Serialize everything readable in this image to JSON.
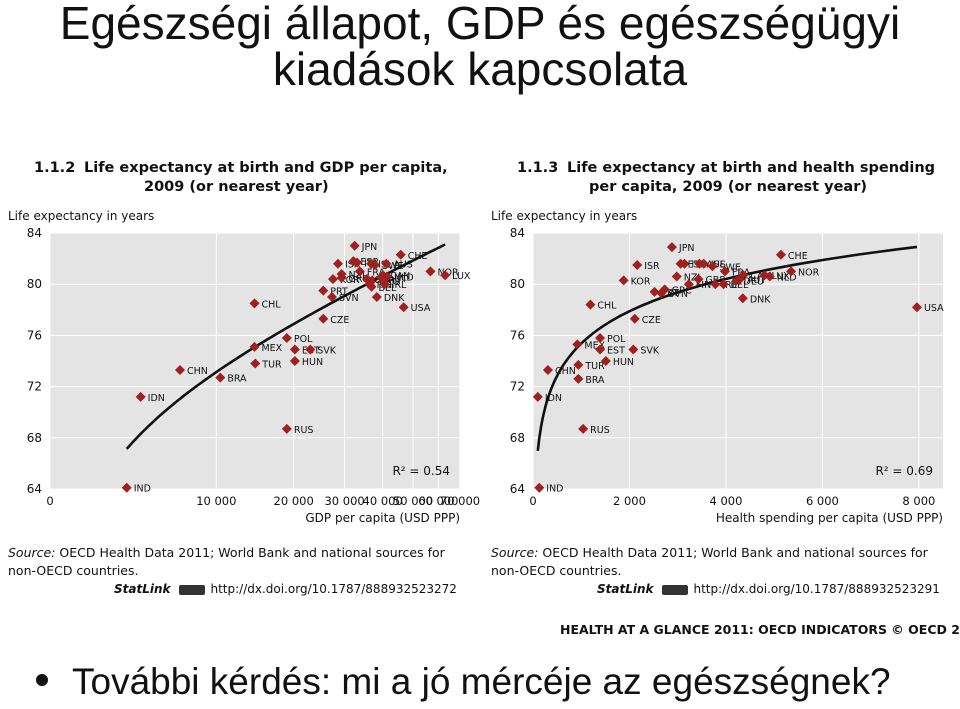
{
  "slide": {
    "title_line1": "Egészségi állapot, GDP és egészségügyi",
    "title_line2": "kiadások kapcsolata",
    "bullet": "További kérdés: mi a jó mércéje az egészségnek?",
    "footer": "HEALTH AT A GLANCE 2011: OECD INDICATORS © OECD 2011"
  },
  "colors": {
    "marker": "#a01f1f",
    "plot_bg": "#e4e4e4",
    "grid": "#ffffff",
    "curve": "#111111"
  },
  "chart_data": [
    {
      "type": "scatter",
      "number": "1.1.2",
      "title_line1": "Life expectancy at birth and GDP per capita,",
      "title_line2": "2009 (or nearest year)",
      "ylabel": "Life expectancy in years",
      "xlabel": "GDP per capita (USD PPP)",
      "xscale": "log",
      "xlim": [
        0,
        70000
      ],
      "ylim": [
        64,
        84
      ],
      "xticks": [
        0,
        10000,
        20000,
        30000,
        40000,
        50000,
        60000,
        70000
      ],
      "xtick_labels": [
        "0",
        "10 000",
        "20 000",
        "30 000",
        "40 000",
        "50 000",
        "60 000",
        "70 000"
      ],
      "yticks": [
        64,
        68,
        72,
        76,
        80,
        84
      ],
      "r2": "R² = 0.54",
      "grid": true,
      "trend": "logarithmic",
      "points": [
        {
          "label": "IND",
          "x": 3300,
          "y": 64.1
        },
        {
          "label": "IDN",
          "x": 4100,
          "y": 71.2
        },
        {
          "label": "CHN",
          "x": 6800,
          "y": 73.3
        },
        {
          "label": "BRA",
          "x": 10400,
          "y": 72.7
        },
        {
          "label": "MEX",
          "x": 14300,
          "y": 75.1
        },
        {
          "label": "TUR",
          "x": 14400,
          "y": 73.8
        },
        {
          "label": "CHL",
          "x": 14300,
          "y": 78.5
        },
        {
          "label": "RUS",
          "x": 18900,
          "y": 68.7
        },
        {
          "label": "POL",
          "x": 18900,
          "y": 75.8
        },
        {
          "label": "EST",
          "x": 20200,
          "y": 74.9
        },
        {
          "label": "HUN",
          "x": 20200,
          "y": 74.0
        },
        {
          "label": "SVK",
          "x": 22900,
          "y": 74.9
        },
        {
          "label": "CZE",
          "x": 25400,
          "y": 77.3
        },
        {
          "label": "PRT",
          "x": 25400,
          "y": 79.5
        },
        {
          "label": "SVN",
          "x": 27200,
          "y": 79.0
        },
        {
          "label": "KOR",
          "x": 27400,
          "y": 80.4
        },
        {
          "label": "NZL",
          "x": 29300,
          "y": 80.8
        },
        {
          "label": "GRC",
          "x": 29300,
          "y": 80.5
        },
        {
          "label": "ISR",
          "x": 28500,
          "y": 81.6
        },
        {
          "label": "ESP",
          "x": 32100,
          "y": 81.8
        },
        {
          "label": "ITA",
          "x": 33000,
          "y": 81.7
        },
        {
          "label": "JPN",
          "x": 32400,
          "y": 83.0
        },
        {
          "label": "FRA",
          "x": 33700,
          "y": 81.0
        },
        {
          "label": "BEL",
          "x": 36800,
          "y": 79.8
        },
        {
          "label": "FIN",
          "x": 36300,
          "y": 80.0
        },
        {
          "label": "DEU",
          "x": 37000,
          "y": 80.3
        },
        {
          "label": "GBR",
          "x": 35600,
          "y": 80.4
        },
        {
          "label": "ISL",
          "x": 36700,
          "y": 81.6
        },
        {
          "label": "SWE",
          "x": 37800,
          "y": 81.5
        },
        {
          "label": "DNK",
          "x": 38300,
          "y": 79.0
        },
        {
          "label": "AUT",
          "x": 39500,
          "y": 80.5
        },
        {
          "label": "IRL",
          "x": 40600,
          "y": 80.0
        },
        {
          "label": "CAN",
          "x": 40100,
          "y": 80.7
        },
        {
          "label": "AUS",
          "x": 41100,
          "y": 81.6
        },
        {
          "label": "NLD",
          "x": 41300,
          "y": 80.6
        },
        {
          "label": "USA",
          "x": 46700,
          "y": 78.2
        },
        {
          "label": "CHE",
          "x": 45700,
          "y": 82.3
        },
        {
          "label": "NOR",
          "x": 56700,
          "y": 81.0
        },
        {
          "label": "LUX",
          "x": 63000,
          "y": 80.7
        }
      ]
    },
    {
      "type": "scatter",
      "number": "1.1.3",
      "title_line1": "Life expectancy at birth and health spending",
      "title_line2": "per capita, 2009 (or nearest year)",
      "ylabel": "Life expectancy in years",
      "xlabel": "Health spending per capita (USD PPP)",
      "xscale": "linear",
      "xlim": [
        0,
        8500
      ],
      "ylim": [
        64,
        84
      ],
      "xticks": [
        0,
        2000,
        4000,
        6000,
        8000
      ],
      "xtick_labels": [
        "0",
        "2 000",
        "4 000",
        "6 000",
        "8 000"
      ],
      "yticks": [
        64,
        68,
        72,
        76,
        80,
        84
      ],
      "r2": "R² = 0.69",
      "grid": true,
      "trend": "logarithmic",
      "points": [
        {
          "label": "IND",
          "x": 130,
          "y": 64.1
        },
        {
          "label": "IDN",
          "x": 100,
          "y": 71.2
        },
        {
          "label": "CHN",
          "x": 310,
          "y": 73.3
        },
        {
          "label": "BRA",
          "x": 940,
          "y": 72.6
        },
        {
          "label": "MEX",
          "x": 920,
          "y": 75.3
        },
        {
          "label": "TUR",
          "x": 940,
          "y": 73.7
        },
        {
          "label": "CHL",
          "x": 1190,
          "y": 78.4
        },
        {
          "label": "RUS",
          "x": 1040,
          "y": 68.7
        },
        {
          "label": "POL",
          "x": 1390,
          "y": 75.8
        },
        {
          "label": "EST",
          "x": 1390,
          "y": 74.9
        },
        {
          "label": "HUN",
          "x": 1510,
          "y": 74.0
        },
        {
          "label": "SVK",
          "x": 2080,
          "y": 74.9
        },
        {
          "label": "CZE",
          "x": 2110,
          "y": 77.3
        },
        {
          "label": "KOR",
          "x": 1880,
          "y": 80.3
        },
        {
          "label": "ISR",
          "x": 2160,
          "y": 81.5
        },
        {
          "label": "PRT",
          "x": 2520,
          "y": 79.4
        },
        {
          "label": "NZL",
          "x": 2980,
          "y": 80.6
        },
        {
          "label": "GRC",
          "x": 2730,
          "y": 79.6
        },
        {
          "label": "SVN",
          "x": 2660,
          "y": 79.3
        },
        {
          "label": "ITA",
          "x": 3140,
          "y": 81.6
        },
        {
          "label": "JPN",
          "x": 2880,
          "y": 82.9
        },
        {
          "label": "ESP",
          "x": 3060,
          "y": 81.6
        },
        {
          "label": "FIN",
          "x": 3230,
          "y": 80.0
        },
        {
          "label": "GBR",
          "x": 3430,
          "y": 80.4
        },
        {
          "label": "IRL",
          "x": 3780,
          "y": 80.0
        },
        {
          "label": "AUS",
          "x": 3450,
          "y": 81.6
        },
        {
          "label": "ISL",
          "x": 3540,
          "y": 81.6
        },
        {
          "label": "SWE",
          "x": 3720,
          "y": 81.4
        },
        {
          "label": "FRA",
          "x": 3980,
          "y": 81.0
        },
        {
          "label": "CAN",
          "x": 4360,
          "y": 80.7
        },
        {
          "label": "BEL",
          "x": 3950,
          "y": 80.0
        },
        {
          "label": "DNK",
          "x": 4350,
          "y": 78.9
        },
        {
          "label": "AUT",
          "x": 4290,
          "y": 80.4
        },
        {
          "label": "DEU",
          "x": 4220,
          "y": 80.3
        },
        {
          "label": "LUX",
          "x": 4800,
          "y": 80.7
        },
        {
          "label": "NLD",
          "x": 4910,
          "y": 80.6
        },
        {
          "label": "CHE",
          "x": 5140,
          "y": 82.3
        },
        {
          "label": "NOR",
          "x": 5350,
          "y": 81.0
        },
        {
          "label": "USA",
          "x": 7960,
          "y": 78.2
        }
      ]
    }
  ],
  "panels": [
    {
      "source_label": "Source:",
      "source_text": "OECD Health Data 2011; World Bank and national sources for non-OECD countries.",
      "statlink_label": "StatLink",
      "statlink_url": "http://dx.doi.org/10.1787/888932523272"
    },
    {
      "source_label": "Source:",
      "source_text": "OECD Health Data 2011; World Bank and national sources for non-OECD countries.",
      "statlink_label": "StatLink",
      "statlink_url": "http://dx.doi.org/10.1787/888932523291"
    }
  ]
}
